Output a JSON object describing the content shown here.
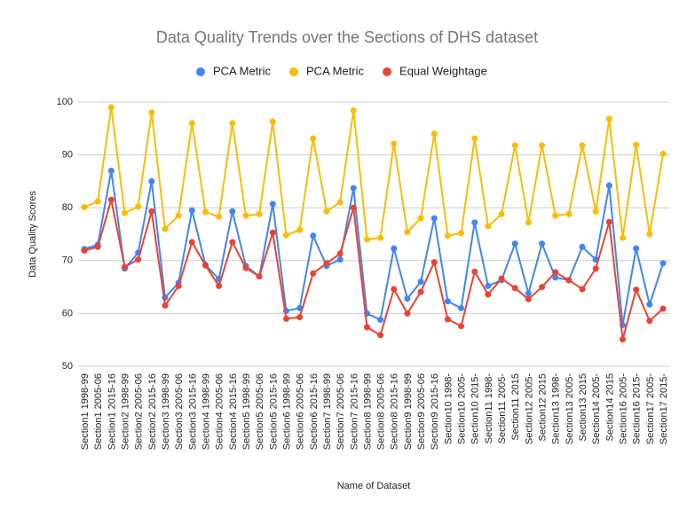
{
  "chart_data": {
    "type": "line",
    "title": "Data Quality Trends over the Sections of DHS dataset",
    "x_label": "Name of Dataset",
    "y_label": "Data Quality Scores",
    "categories": [
      "Section1 1998-99",
      "Section1 2005-06",
      "Section1 2015-16",
      "Section2 1998-99",
      "Section2 2005-06",
      "Section2 2015-16",
      "Section3 1998-99",
      "Section3 2005-06",
      "Section3 2015-16",
      "Section4 1998-99",
      "Section4 2005-06",
      "Section4 2015-16",
      "Section5 1998-99",
      "Section5 2005-06",
      "Section5 2015-16",
      "Section6 1998-99",
      "Section6 2005-06",
      "Section6 2015-16",
      "Section7 1998-99",
      "Section7 2005-06",
      "Section7 2015-16",
      "Section8 1998-99",
      "Section8 2005-06",
      "Section8 2015-16",
      "Section9 1998-99",
      "Section9 2005-06",
      "Section9 2015-16",
      "Section10 1998-",
      "Section10 2005-",
      "Section10 2015-",
      "Section11 1998-",
      "Section11 2005-",
      "Section11 2015",
      "Section12 2005-",
      "Section12 2015",
      "Section13 1998-",
      "Section13 2005-",
      "Section13 2015",
      "Section14 2005-",
      "Section14 2015",
      "Section16 2005-",
      "Section16 2015-",
      "Section17 2005-",
      "Section17 2015-"
    ],
    "series": [
      {
        "name": "PCA Metric",
        "color": "#4285f4",
        "values": [
          72.2,
          73,
          87,
          68.5,
          71.5,
          85,
          63,
          65.8,
          79.5,
          69.2,
          66.5,
          79.3,
          69,
          67,
          80.7,
          60.5,
          61,
          74.7,
          69,
          70.2,
          83.7,
          60,
          58.8,
          72.3,
          62.8,
          66,
          78,
          62.3,
          61,
          77.2,
          65.2,
          66.3,
          73.2,
          63.8,
          73.2,
          66.8,
          66.3,
          72.6,
          70.2,
          84.2,
          57.8,
          72.3,
          61.7,
          69.5
        ]
      },
      {
        "name": "PCA Metric",
        "color": "#fbbc04",
        "values": [
          80.1,
          81.2,
          99,
          79,
          80.2,
          98,
          76,
          78.5,
          96,
          79.2,
          78.3,
          96,
          78.5,
          78.8,
          96.3,
          74.8,
          75.8,
          93.1,
          79.3,
          81,
          98.4,
          74,
          74.3,
          92.1,
          75.4,
          78,
          94,
          74.7,
          75.2,
          93.1,
          76.5,
          78.8,
          91.8,
          77.2,
          91.8,
          78.5,
          78.8,
          91.8,
          79.3,
          96.8,
          74.3,
          91.9,
          75,
          90.2
        ]
      },
      {
        "name": "Equal Weightage",
        "color": "#ea4335",
        "values": [
          71.9,
          72.6,
          81.5,
          68.8,
          70.2,
          79.3,
          61.5,
          65.2,
          73.5,
          69.1,
          65.2,
          73.5,
          68.6,
          67,
          75.3,
          59,
          59.3,
          67.6,
          69.5,
          71.3,
          80,
          57.4,
          55.9,
          64.6,
          60,
          64.1,
          69.7,
          58.9,
          57.6,
          67.9,
          63.6,
          66.6,
          64.8,
          62.7,
          65,
          67.8,
          66.3,
          64.6,
          68.5,
          77.3,
          55.1,
          64.5,
          58.6,
          60.9
        ]
      }
    ],
    "ylim": [
      50,
      100
    ],
    "yticks": [
      50,
      60,
      70,
      80,
      90,
      100
    ],
    "grid": true,
    "legend": "top"
  }
}
